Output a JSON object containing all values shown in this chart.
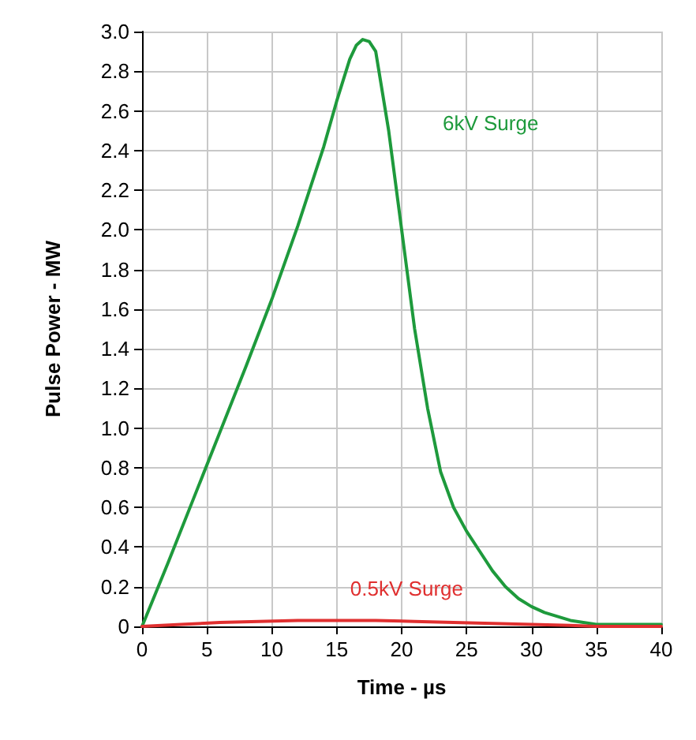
{
  "chart_data": {
    "type": "line",
    "xlabel": "Time - µs",
    "ylabel": "Pulse Power - MW",
    "xlim": [
      0,
      40
    ],
    "xticks": [
      0,
      5,
      10,
      15,
      20,
      25,
      30,
      35,
      40
    ],
    "ylim": [
      0,
      3
    ],
    "yticks": [
      0,
      0.2,
      0.4,
      0.6,
      0.8,
      {
        "value": 1,
        "label": "1.0"
      },
      1.2,
      1.4,
      1.6,
      1.8,
      {
        "value": 2,
        "label": "2.0"
      },
      2.2,
      2.4,
      2.6,
      2.8,
      {
        "value": 3,
        "label": "3.0"
      }
    ],
    "grid": true,
    "marker": "none",
    "line_style": "solid",
    "series": [
      {
        "name": "6kV Surge",
        "color": "#1e9a3c",
        "x": [
          0,
          2,
          4,
          6,
          8,
          10,
          12,
          14,
          15,
          16,
          16.5,
          17,
          17.5,
          18,
          19,
          20,
          21,
          22,
          23,
          24,
          25,
          26,
          27,
          28,
          29,
          30,
          31,
          32,
          33,
          34,
          35,
          37,
          40
        ],
        "values": [
          0,
          0.32,
          0.65,
          0.98,
          1.31,
          1.65,
          2.02,
          2.42,
          2.65,
          2.86,
          2.93,
          2.96,
          2.95,
          2.9,
          2.5,
          2.0,
          1.5,
          1.1,
          0.78,
          0.6,
          0.48,
          0.38,
          0.28,
          0.2,
          0.14,
          0.1,
          0.07,
          0.05,
          0.03,
          0.02,
          0.01,
          0.01,
          0.01
        ]
      },
      {
        "name": "0.5kV Surge",
        "color": "#e03030",
        "x": [
          0,
          3,
          6,
          9,
          12,
          15,
          18,
          21,
          24,
          27,
          30,
          33,
          35,
          40
        ],
        "values": [
          0,
          0.01,
          0.02,
          0.025,
          0.03,
          0.03,
          0.03,
          0.025,
          0.02,
          0.015,
          0.01,
          0.005,
          0,
          0
        ]
      }
    ]
  }
}
